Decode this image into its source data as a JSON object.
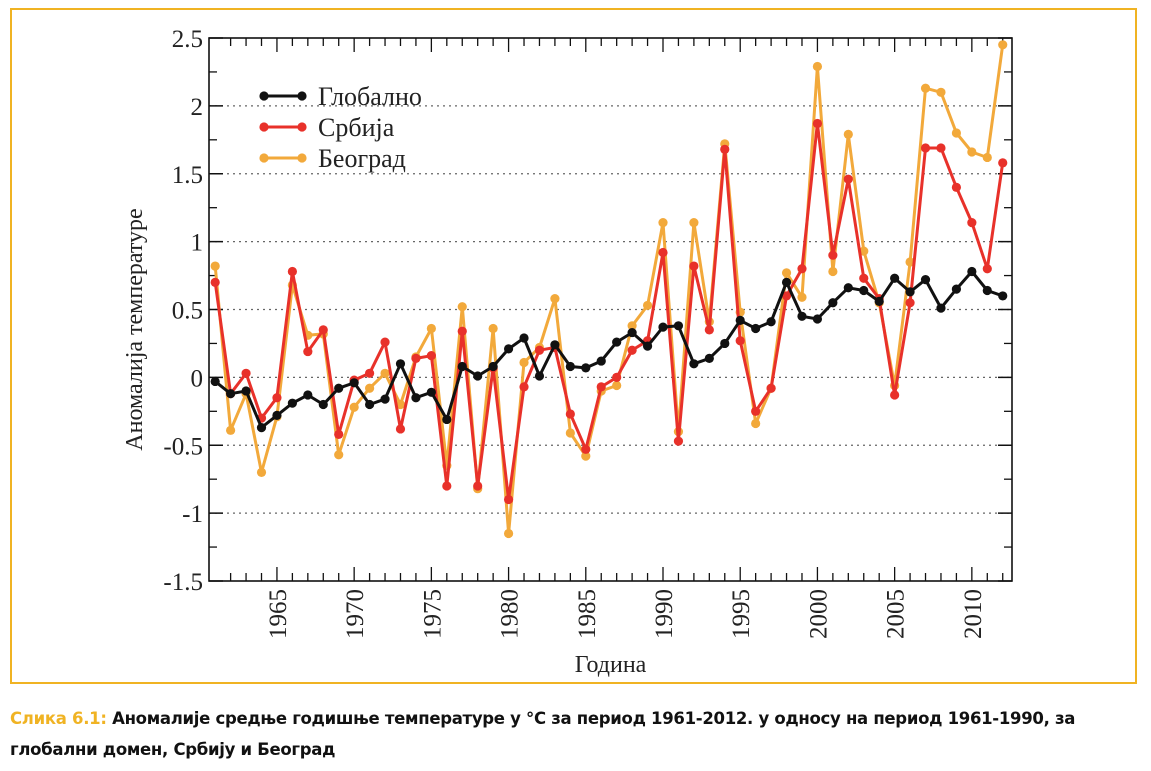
{
  "chart_data": {
    "type": "line",
    "title": "",
    "xlabel": "Година",
    "ylabel": "Аномалија температуре",
    "xlim": [
      1961,
      2012
    ],
    "ylim": [
      -1.5,
      2.5
    ],
    "y_ticks": [
      2.5,
      2,
      1.5,
      1,
      0.5,
      0,
      -0.5,
      -1,
      -1.5
    ],
    "y_tick_labels": [
      "2.5",
      "2",
      "1.5",
      "1",
      "0.5",
      "0",
      "-0.5",
      "-1",
      "-1.5"
    ],
    "x_ticks": [
      1965,
      1970,
      1975,
      1980,
      1985,
      1990,
      1995,
      2000,
      2005,
      2010
    ],
    "x_tick_labels": [
      "1965",
      "1970",
      "1975",
      "1980",
      "1985",
      "1990",
      "1995",
      "2000",
      "2005",
      "2010"
    ],
    "grid": "dotted-horizontal",
    "legend_position": "top-left",
    "x": [
      1961,
      1962,
      1963,
      1964,
      1965,
      1966,
      1967,
      1968,
      1969,
      1970,
      1971,
      1972,
      1973,
      1974,
      1975,
      1976,
      1977,
      1978,
      1979,
      1980,
      1981,
      1982,
      1983,
      1984,
      1985,
      1986,
      1987,
      1988,
      1989,
      1990,
      1991,
      1992,
      1993,
      1994,
      1995,
      1996,
      1997,
      1998,
      1999,
      2000,
      2001,
      2002,
      2003,
      2004,
      2005,
      2006,
      2007,
      2008,
      2009,
      2010,
      2011,
      2012
    ],
    "series": [
      {
        "name": "Глобално",
        "color": "#111111",
        "values": [
          -0.03,
          -0.12,
          -0.1,
          -0.37,
          -0.28,
          -0.19,
          -0.13,
          -0.2,
          -0.08,
          -0.04,
          -0.2,
          -0.16,
          0.1,
          -0.15,
          -0.11,
          -0.31,
          0.08,
          0.01,
          0.08,
          0.21,
          0.29,
          0.01,
          0.24,
          0.08,
          0.07,
          0.12,
          0.26,
          0.33,
          0.23,
          0.37,
          0.38,
          0.1,
          0.14,
          0.25,
          0.42,
          0.36,
          0.41,
          0.7,
          0.45,
          0.43,
          0.55,
          0.66,
          0.64,
          0.56,
          0.73,
          0.63,
          0.72,
          0.51,
          0.65,
          0.78,
          0.64,
          0.6
        ]
      },
      {
        "name": "Србија",
        "color": "#e8312a",
        "values": [
          0.7,
          -0.12,
          0.03,
          -0.3,
          -0.15,
          0.78,
          0.19,
          0.35,
          -0.42,
          -0.02,
          0.03,
          0.26,
          -0.38,
          0.14,
          0.16,
          -0.8,
          0.34,
          -0.8,
          0.07,
          -0.9,
          -0.07,
          0.2,
          0.22,
          -0.27,
          -0.53,
          -0.07,
          0.0,
          0.2,
          0.27,
          0.92,
          -0.47,
          0.82,
          0.35,
          1.68,
          0.27,
          -0.25,
          -0.08,
          0.6,
          0.8,
          1.87,
          0.9,
          1.46,
          0.73,
          0.58,
          -0.13,
          0.55,
          1.69,
          1.69,
          1.4,
          1.14,
          0.8,
          1.58
        ]
      },
      {
        "name": "Београд",
        "color": "#f2a93b",
        "values": [
          0.82,
          -0.39,
          -0.12,
          -0.7,
          -0.29,
          0.68,
          0.31,
          0.32,
          -0.57,
          -0.22,
          -0.08,
          0.03,
          -0.2,
          0.15,
          0.36,
          -0.65,
          0.52,
          -0.82,
          0.36,
          -1.15,
          0.11,
          0.22,
          0.58,
          -0.41,
          -0.58,
          -0.1,
          -0.06,
          0.38,
          0.53,
          1.14,
          -0.4,
          1.14,
          0.41,
          1.72,
          0.48,
          -0.34,
          -0.08,
          0.77,
          0.59,
          2.29,
          0.78,
          1.79,
          0.93,
          0.55,
          -0.06,
          0.85,
          2.13,
          2.1,
          1.8,
          1.66,
          1.62,
          2.45
        ]
      }
    ]
  },
  "caption": {
    "label": "Слика 6.1:",
    "text": " Аномалије средње годишње температуре у °C за период 1961-2012. у односу на период 1961-1990, за глобални домен, Србију и Београд"
  }
}
